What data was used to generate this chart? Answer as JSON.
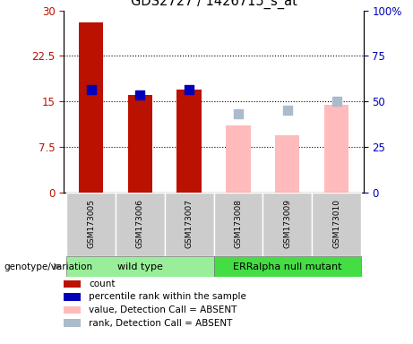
{
  "title": "GDS2727 / 1426715_s_at",
  "samples": [
    "GSM173005",
    "GSM173006",
    "GSM173007",
    "GSM173008",
    "GSM173009",
    "GSM173010"
  ],
  "absent": [
    false,
    false,
    false,
    true,
    true,
    true
  ],
  "count_values": [
    28.0,
    16.0,
    17.0,
    11.0,
    9.5,
    14.5
  ],
  "rank_values": [
    17.0,
    16.0,
    17.0,
    13.0,
    13.5,
    15.0
  ],
  "ylim_left": [
    0,
    30
  ],
  "ylim_right": [
    0,
    100
  ],
  "yticks_left": [
    0,
    7.5,
    15,
    22.5,
    30
  ],
  "yticks_right": [
    0,
    25,
    50,
    75,
    100
  ],
  "bar_color_present": "#bb1100",
  "bar_color_absent": "#ffbbbb",
  "rank_color_present": "#0000bb",
  "rank_color_absent": "#aabbcc",
  "group1_color": "#99ee99",
  "group2_color": "#44dd44",
  "group1_label": "wild type",
  "group2_label": "ERRalpha null mutant",
  "bar_width": 0.5,
  "rank_marker_size": 55,
  "legend_labels": [
    "count",
    "percentile rank within the sample",
    "value, Detection Call = ABSENT",
    "rank, Detection Call = ABSENT"
  ],
  "legend_colors": [
    "#bb1100",
    "#0000bb",
    "#ffbbbb",
    "#aabbcc"
  ]
}
